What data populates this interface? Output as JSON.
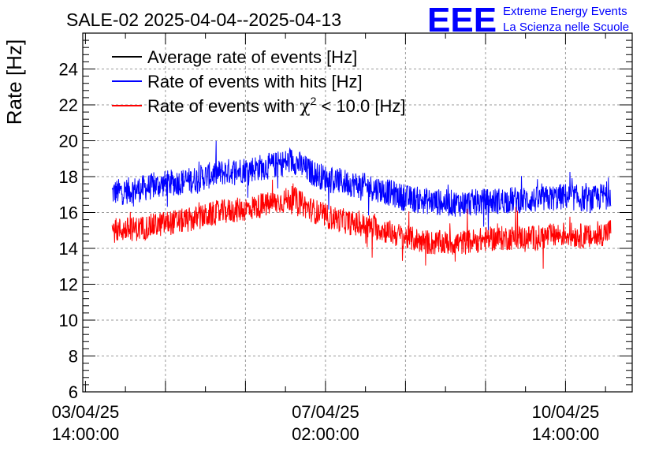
{
  "chart_data": {
    "type": "line",
    "title": "SALE-02 2025-04-04--2025-04-13",
    "ylabel": "Rate [Hz]",
    "xlabel": "",
    "ylim": [
      6,
      26
    ],
    "yticks": [
      6,
      8,
      10,
      12,
      14,
      16,
      18,
      20,
      22,
      24
    ],
    "xlim_days": [
      -0.05,
      10.25
    ],
    "xticks": [
      {
        "day": 0,
        "date": "03/04/25",
        "time": "14:00:00"
      },
      {
        "day": 4.5,
        "date": "07/04/25",
        "time": "02:00:00"
      },
      {
        "day": 9,
        "date": "10/04/25",
        "time": "14:00:00"
      }
    ],
    "x_minor_grid_days": [
      1.5,
      3,
      4.5,
      6,
      7.5,
      9
    ],
    "grid": true,
    "legend_position": "top-left",
    "colors": {
      "average": "#000000",
      "hits": "#0000ff",
      "chi2": "#ff0000"
    },
    "series": [
      {
        "name": "Average rate of events [Hz]",
        "key": "average",
        "color": "#000000",
        "x_days": [],
        "values": []
      },
      {
        "name": "Rate of events with hits [Hz]",
        "key": "hits",
        "color": "#0000ff",
        "x_days": [
          0.5,
          1.0,
          1.5,
          2.0,
          2.5,
          3.0,
          3.5,
          3.9,
          4.2,
          4.5,
          5.0,
          5.5,
          6.0,
          6.5,
          7.0,
          7.5,
          8.0,
          8.5,
          9.0,
          9.5,
          9.85
        ],
        "values": [
          17.1,
          17.3,
          17.6,
          17.8,
          18.2,
          18.4,
          18.6,
          18.9,
          18.3,
          17.9,
          17.6,
          17.3,
          16.8,
          16.6,
          16.5,
          16.6,
          16.7,
          16.7,
          16.9,
          16.7,
          17.1
        ],
        "noise_amplitude": 0.75
      },
      {
        "name": "Rate of events with χ² < 10.0 [Hz]",
        "key": "chi2",
        "color": "#ff0000",
        "x_days": [
          0.5,
          1.0,
          1.5,
          2.0,
          2.5,
          3.0,
          3.5,
          3.9,
          4.2,
          4.5,
          5.0,
          5.5,
          6.0,
          6.5,
          7.0,
          7.5,
          8.0,
          8.5,
          9.0,
          9.5,
          9.85
        ],
        "values": [
          15.0,
          15.1,
          15.4,
          15.6,
          16.0,
          16.2,
          16.5,
          16.8,
          16.2,
          15.8,
          15.4,
          15.1,
          14.6,
          14.3,
          14.3,
          14.5,
          14.6,
          14.6,
          14.8,
          14.6,
          15.0
        ],
        "noise_amplitude": 0.7
      }
    ],
    "legend": [
      {
        "key": "average",
        "label": "Average rate of events [Hz]"
      },
      {
        "key": "hits",
        "label": "Rate of events with hits [Hz]"
      },
      {
        "key": "chi2",
        "label_prefix": "Rate of events with ",
        "label_symbol": "χ",
        "label_sup": "2",
        "label_suffix": " < 10.0 [Hz]"
      }
    ]
  },
  "logo": {
    "text": "EEE",
    "line1": "Extreme Energy Events",
    "line2": "La Scienza nelle Scuole",
    "color": "#0000ff"
  }
}
